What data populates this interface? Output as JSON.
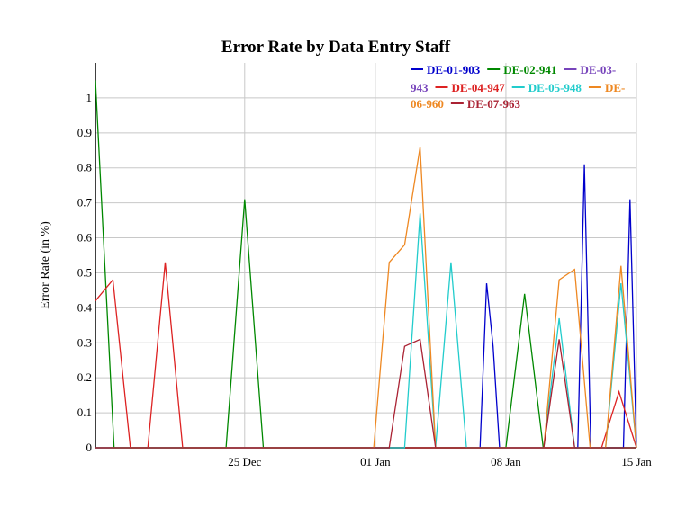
{
  "chart_data": {
    "type": "line",
    "title": "Error Rate by Data Entry Staff",
    "xlabel": "",
    "ylabel": "Error Rate (in %)",
    "ylim": [
      0,
      1.1
    ],
    "yticks": [
      "0",
      "0.1",
      "0.2",
      "0.3",
      "0.4",
      "0.5",
      "0.6",
      "0.7",
      "0.8",
      "0.9",
      "1"
    ],
    "xticks": [
      {
        "label": "25 Dec",
        "day": 8
      },
      {
        "label": "01 Jan",
        "day": 15
      },
      {
        "label": "08 Jan",
        "day": 22
      },
      {
        "label": "15 Jan",
        "day": 29
      }
    ],
    "x_first_day": 0,
    "x_last_day": 29,
    "grid": true,
    "legend": "top-right",
    "series": [
      {
        "name": "DE-01-903",
        "color": "#0000cc",
        "values": [
          0,
          0,
          0,
          0,
          0,
          0,
          0,
          0,
          0,
          0,
          0,
          0,
          0,
          0,
          0,
          0,
          0,
          0,
          0,
          0,
          0,
          0,
          0,
          0,
          0,
          0,
          0,
          0,
          0,
          0,
          0,
          0,
          0,
          0,
          0,
          0,
          0,
          0,
          0,
          0,
          0,
          0,
          0,
          0,
          0,
          0,
          0,
          0,
          0,
          0,
          0,
          0,
          0,
          0,
          0,
          0,
          0,
          0,
          0,
          0,
          0.47,
          0.29,
          0,
          0,
          0,
          0,
          0,
          0,
          0,
          0,
          0,
          0,
          0,
          0,
          0,
          0.81,
          0,
          0,
          0,
          0,
          0,
          0,
          0.71,
          0
        ]
      },
      {
        "name": "DE-02-941",
        "color": "#008800",
        "values": [
          1.05,
          0,
          0,
          0,
          0,
          0,
          0,
          0,
          0.71,
          0,
          0,
          0,
          0,
          0,
          0,
          0,
          0,
          0,
          0,
          0,
          0,
          0,
          0,
          0.44,
          0,
          0,
          0,
          0,
          0,
          0
        ]
      },
      {
        "name": "DE-03-943",
        "color": "#7744bb",
        "values": []
      },
      {
        "name": "DE-04-947",
        "color": "#dd2222",
        "values": [
          0.42,
          0.48,
          0,
          0,
          0.53,
          0,
          0,
          0,
          0,
          0,
          0,
          0,
          0,
          0,
          0,
          0,
          0,
          0,
          0,
          0,
          0,
          0,
          0,
          0,
          0,
          0,
          0,
          0,
          0,
          0,
          0.16,
          0
        ]
      },
      {
        "name": "DE-05-948",
        "color": "#22cccc",
        "values": [
          0,
          0,
          0,
          0,
          0,
          0,
          0,
          0,
          0,
          0,
          0,
          0,
          0,
          0,
          0,
          0,
          0,
          0,
          0,
          0,
          0,
          0.67,
          0,
          0.53,
          0,
          0,
          0,
          0,
          0,
          0,
          0.37,
          0,
          0,
          0,
          0.47,
          0
        ]
      },
      {
        "name": "DE-06-960",
        "color": "#ee8822",
        "values": [
          0,
          0,
          0,
          0,
          0,
          0,
          0,
          0,
          0,
          0,
          0,
          0,
          0,
          0,
          0,
          0,
          0,
          0,
          0,
          0.53,
          0.58,
          0.86,
          0,
          0,
          0,
          0,
          0,
          0,
          0,
          0,
          0.48,
          0.51,
          0,
          0,
          0.52,
          0
        ]
      },
      {
        "name": "DE-07-963",
        "color": "#aa2233",
        "values": [
          0,
          0,
          0,
          0,
          0,
          0,
          0,
          0,
          0,
          0,
          0,
          0,
          0,
          0,
          0,
          0,
          0,
          0,
          0,
          0,
          0.29,
          0.31,
          0,
          0,
          0,
          0,
          0,
          0,
          0,
          0,
          0.31,
          0,
          0,
          0,
          0,
          0
        ]
      }
    ]
  },
  "legend_rows": [
    [
      {
        "text": "DE-01-903",
        "color": "#0000cc"
      },
      {
        "text": "DE-02-941",
        "color": "#008800"
      },
      {
        "text": "DE-03-",
        "color": "#7744bb"
      }
    ],
    [
      {
        "text": "943",
        "color": "#7744bb",
        "noline": true
      },
      {
        "text": "DE-04-947",
        "color": "#dd2222"
      },
      {
        "text": "DE-05-948",
        "color": "#22cccc"
      },
      {
        "text": "DE-",
        "color": "#ee8822"
      }
    ],
    [
      {
        "text": "06-960",
        "color": "#ee8822",
        "noline": true
      },
      {
        "text": "DE-07-963",
        "color": "#aa2233"
      }
    ]
  ]
}
